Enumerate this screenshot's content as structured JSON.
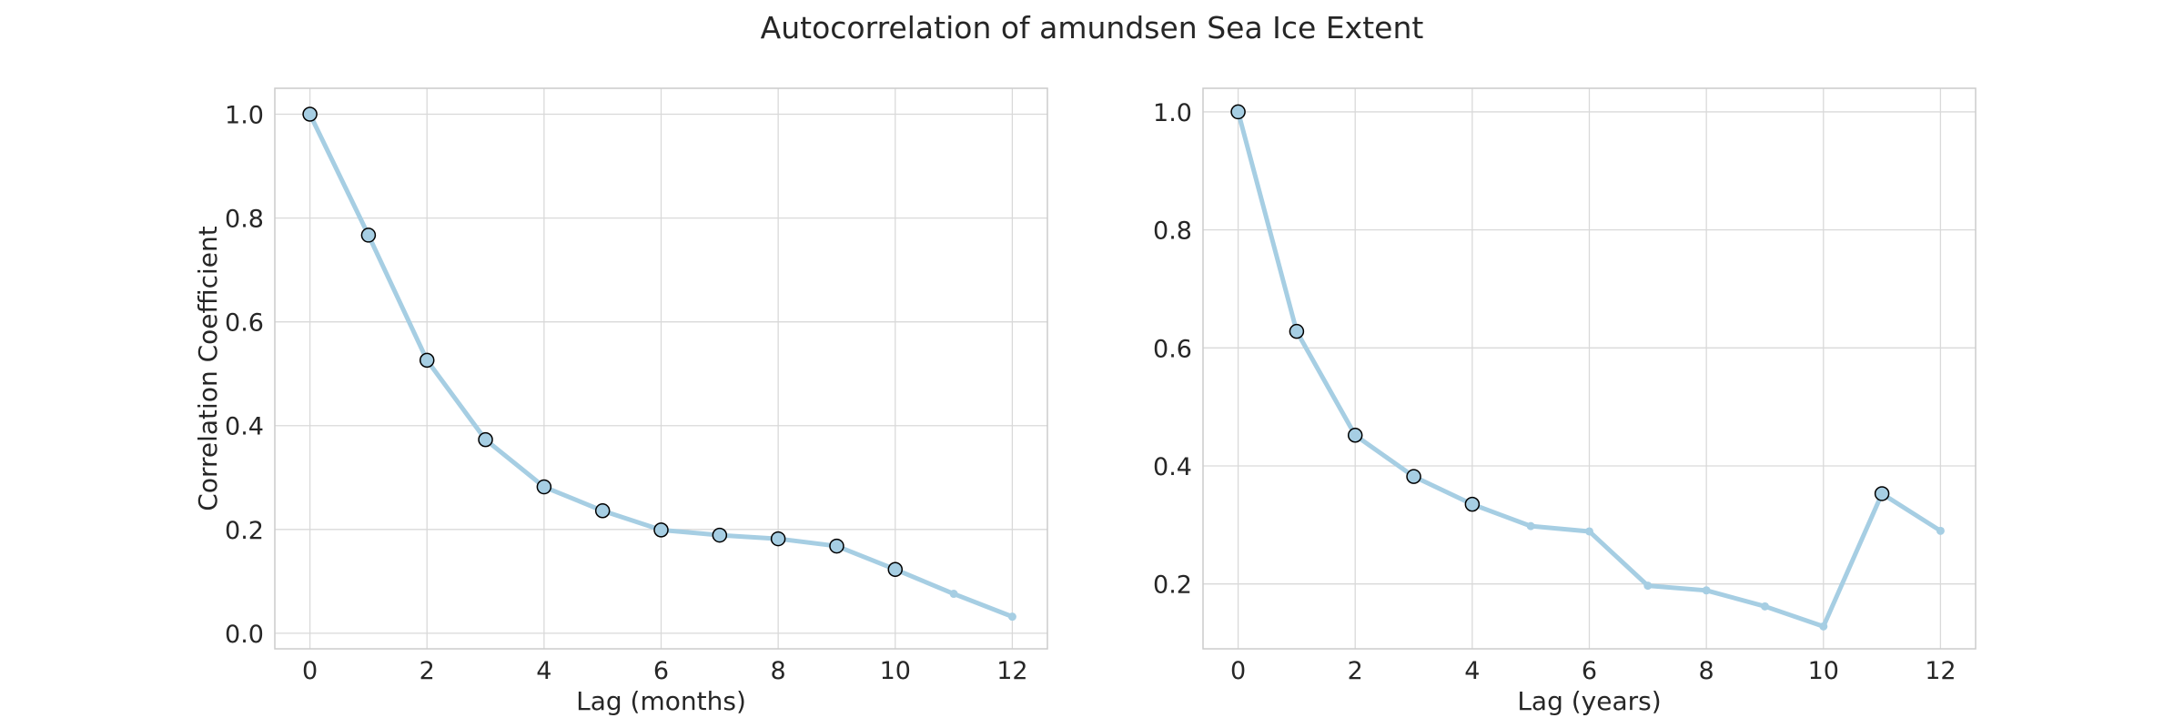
{
  "figure": {
    "title": "Autocorrelation of amundsen Sea Ice Extent"
  },
  "colors": {
    "line": "#a6cee3",
    "marker_edge": "#000000",
    "grid": "#d9d9d9",
    "spine": "#cccccc",
    "text": "#262626"
  },
  "chart_data": [
    {
      "type": "line",
      "title": "",
      "xlabel": "Lag (months)",
      "ylabel": "Correlation Coefficient",
      "xlim": [
        -0.6,
        12.6
      ],
      "ylim": [
        -0.03,
        1.05
      ],
      "xticks": [
        0,
        2,
        4,
        6,
        8,
        10,
        12
      ],
      "yticks": [
        0.0,
        0.2,
        0.4,
        0.6,
        0.8,
        1.0
      ],
      "ytick_labels": [
        "0.0",
        "0.2",
        "0.4",
        "0.6",
        "0.8",
        "1.0"
      ],
      "grid": true,
      "x": [
        0,
        1,
        2,
        3,
        4,
        5,
        6,
        7,
        8,
        9,
        10,
        11,
        12
      ],
      "values": [
        1.0,
        0.767,
        0.526,
        0.373,
        0.282,
        0.236,
        0.199,
        0.189,
        0.182,
        0.168,
        0.123,
        0.076,
        0.032
      ],
      "highlighted": [
        true,
        true,
        true,
        true,
        true,
        true,
        true,
        true,
        true,
        true,
        true,
        false,
        false
      ]
    },
    {
      "type": "line",
      "title": "",
      "xlabel": "Lag (years)",
      "ylabel": "",
      "xlim": [
        -0.6,
        12.6
      ],
      "ylim": [
        0.09,
        1.04
      ],
      "xticks": [
        0,
        2,
        4,
        6,
        8,
        10,
        12
      ],
      "yticks": [
        0.2,
        0.4,
        0.6,
        0.8,
        1.0
      ],
      "ytick_labels": [
        "0.2",
        "0.4",
        "0.6",
        "0.8",
        "1.0"
      ],
      "grid": true,
      "x": [
        0,
        1,
        2,
        3,
        4,
        5,
        6,
        7,
        8,
        9,
        10,
        11,
        12
      ],
      "values": [
        1.0,
        0.628,
        0.452,
        0.382,
        0.335,
        0.298,
        0.289,
        0.197,
        0.189,
        0.162,
        0.128,
        0.353,
        0.29
      ],
      "highlighted": [
        true,
        true,
        true,
        true,
        true,
        false,
        false,
        false,
        false,
        false,
        false,
        true,
        false
      ]
    }
  ]
}
